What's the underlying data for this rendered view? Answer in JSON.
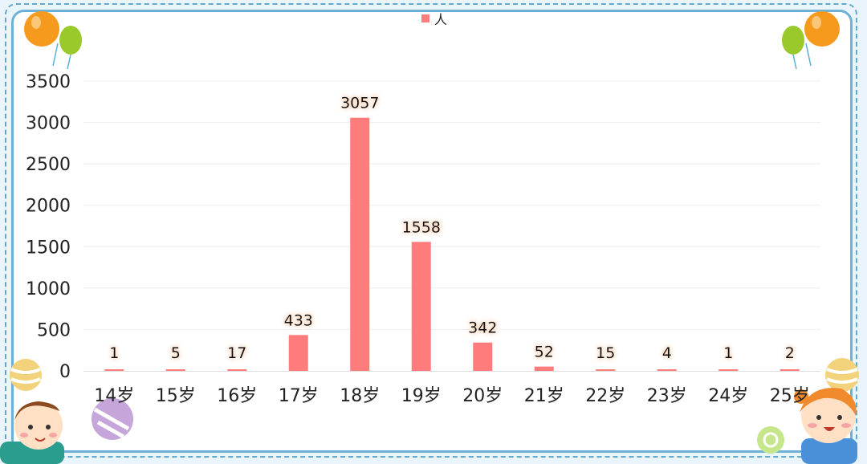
{
  "chart_data": {
    "type": "bar",
    "categories": [
      "14岁",
      "15岁",
      "16岁",
      "17岁",
      "18岁",
      "19岁",
      "20岁",
      "21岁",
      "22岁",
      "23岁",
      "24岁",
      "25岁"
    ],
    "series": [
      {
        "name": "人",
        "values": [
          1,
          5,
          17,
          433,
          3057,
          1558,
          342,
          52,
          15,
          4,
          1,
          2
        ]
      }
    ],
    "ylim": [
      0,
      3500
    ],
    "yticks": [
      0,
      500,
      1000,
      1500,
      2000,
      2500,
      3000,
      3500
    ],
    "grid": true,
    "legend_position": "top-center",
    "show_data_labels": true
  },
  "colors": {
    "bar": "#ff7c7c",
    "label_glow": "#f5c7a5",
    "frame": "#62a9cf",
    "background": "#eaf5fb"
  },
  "decorations": [
    "balloon-icon",
    "balloon-icon",
    "candy-ball-icon",
    "cartoon-boy-icon",
    "cartoon-girl-icon"
  ]
}
